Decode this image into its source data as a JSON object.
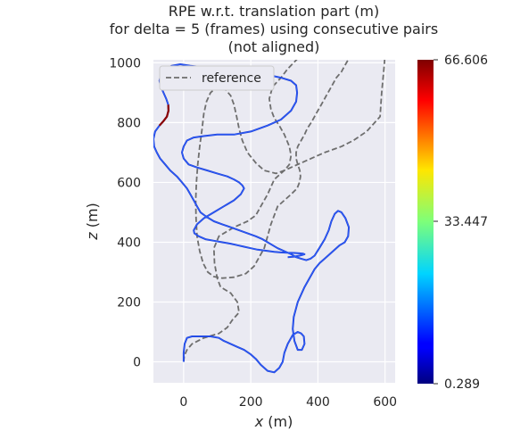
{
  "chart_data": {
    "type": "line",
    "title_lines": [
      "RPE w.r.t. translation part (m)",
      "for delta = 5 (frames) using consecutive pairs",
      "(not aligned)"
    ],
    "xlabel": {
      "var": "x",
      "unit": " (m)"
    },
    "ylabel": {
      "var": "z",
      "unit": " (m)"
    },
    "xlim": [
      -90,
      630
    ],
    "ylim": [
      -70,
      1010
    ],
    "xticks": [
      0,
      200,
      400,
      600
    ],
    "yticks": [
      0,
      200,
      400,
      600,
      800,
      1000
    ],
    "grid": true,
    "legend": {
      "position": "top-left",
      "entries": [
        {
          "label": "reference",
          "style": "dashed",
          "color": "#6e6e6e"
        }
      ]
    },
    "colorbar": {
      "colormap": "jet",
      "min": 0.289,
      "max": 66.606,
      "tick_labels": [
        "66.606",
        "33.447",
        "0.289"
      ]
    },
    "series": [
      {
        "name": "reference",
        "style": "dashed",
        "color": "#6e6e6e",
        "x": [
          0,
          2,
          10,
          25,
          60,
          105,
          130,
          145,
          165,
          160,
          140,
          110,
          100,
          92,
          90,
          105,
          150,
          190,
          215,
          230,
          250,
          270,
          300,
          340,
          380,
          420,
          470,
          505,
          545,
          585,
          590,
          595,
          598,
          600,
          590,
          560,
          520,
          490,
          470,
          440,
          405,
          375,
          360,
          345,
          310,
          290,
          265,
          255,
          260,
          270,
          285,
          300,
          315,
          320,
          315,
          300,
          275,
          240,
          215,
          190,
          175,
          165,
          158,
          150,
          140,
          125,
          110,
          95,
          80,
          68,
          60,
          55,
          48,
          42,
          38,
          36,
          37,
          40,
          48,
          58,
          72,
          90,
          115,
          150,
          185,
          210,
          225,
          240,
          250,
          260,
          270,
          280,
          300,
          320,
          338,
          345,
          348,
          346,
          340,
          335,
          335,
          340,
          350,
          360,
          368,
          380,
          395,
          410,
          425,
          440,
          455,
          470,
          480,
          490,
          495,
          485,
          470,
          450,
          420,
          400,
          380,
          360,
          345,
          335
        ],
        "y": [
          0,
          20,
          40,
          60,
          80,
          95,
          115,
          140,
          165,
          200,
          230,
          250,
          280,
          330,
          380,
          420,
          450,
          470,
          490,
          520,
          560,
          610,
          640,
          660,
          680,
          700,
          720,
          740,
          770,
          820,
          900,
          960,
          1000,
          1030,
          1060,
          1080,
          1090,
          1100,
          1110,
          1110,
          1100,
          1085,
          1060,
          1020,
          980,
          950,
          920,
          880,
          845,
          815,
          790,
          760,
          720,
          690,
          660,
          640,
          630,
          640,
          665,
          700,
          740,
          780,
          820,
          860,
          890,
          910,
          920,
          915,
          900,
          870,
          830,
          780,
          720,
          660,
          600,
          540,
          480,
          420,
          370,
          330,
          300,
          285,
          280,
          283,
          295,
          320,
          350,
          380,
          420,
          460,
          490,
          520,
          540,
          560,
          580,
          600,
          620,
          640,
          660,
          680,
          700,
          720,
          740,
          760,
          780,
          800,
          830,
          860,
          890,
          920,
          950,
          970,
          990,
          1010,
          1030,
          1050,
          1070,
          1085,
          1095,
          1098,
          1095,
          1080,
          1060,
          1030
        ]
      },
      {
        "name": "",
        "style": "solid",
        "colormap_values": "jet",
        "x": [
          0,
          0,
          3,
          10,
          25,
          50,
          80,
          105,
          120,
          140,
          160,
          180,
          200,
          215,
          230,
          250,
          270,
          285,
          295,
          300,
          310,
          325,
          340,
          350,
          358,
          360,
          352,
          340,
          330,
          325,
          328,
          340,
          360,
          375,
          390,
          405,
          420,
          435,
          450,
          465,
          480,
          490,
          492,
          482,
          470,
          460,
          450,
          440,
          432,
          420,
          404,
          390,
          378,
          365,
          350,
          335,
          320,
          300,
          280,
          265,
          250,
          235,
          215,
          190,
          165,
          140,
          115,
          90,
          68,
          50,
          40,
          30,
          20,
          10,
          -5,
          -20,
          -40,
          -55,
          -70,
          -80,
          -88,
          -90,
          -85,
          -72,
          -60,
          -50,
          -45,
          -46,
          -52,
          -60,
          -68,
          -72,
          -68,
          -55,
          -35,
          -10,
          20,
          60,
          100,
          150,
          200,
          250,
          290,
          320,
          335,
          338,
          335,
          320,
          290,
          250,
          200,
          150,
          100,
          60,
          30,
          10,
          0,
          -5,
          0,
          15,
          40,
          70,
          100,
          130,
          150,
          165,
          175,
          180,
          170,
          150,
          120,
          90,
          60,
          40,
          30,
          32,
          45,
          65,
          90,
          115,
          140,
          160,
          180,
          200,
          220,
          240,
          255,
          270,
          290,
          310,
          330,
          345,
          355,
          360,
          355,
          345,
          330,
          310
        ],
        "y": [
          0,
          30,
          60,
          80,
          85,
          85,
          85,
          80,
          70,
          60,
          50,
          40,
          25,
          10,
          -10,
          -30,
          -35,
          -20,
          0,
          30,
          60,
          90,
          100,
          95,
          85,
          60,
          40,
          40,
          70,
          110,
          150,
          200,
          250,
          280,
          310,
          330,
          345,
          360,
          375,
          390,
          400,
          420,
          450,
          480,
          500,
          505,
          495,
          470,
          440,
          410,
          380,
          355,
          345,
          340,
          345,
          350,
          360,
          370,
          380,
          390,
          400,
          410,
          420,
          430,
          440,
          450,
          460,
          470,
          485,
          500,
          520,
          540,
          560,
          580,
          600,
          620,
          640,
          660,
          680,
          700,
          720,
          745,
          770,
          790,
          805,
          820,
          840,
          860,
          880,
          900,
          920,
          940,
          960,
          980,
          990,
          995,
          990,
          985,
          980,
          975,
          970,
          960,
          950,
          940,
          925,
          900,
          870,
          840,
          810,
          790,
          770,
          760,
          760,
          755,
          750,
          740,
          720,
          700,
          680,
          660,
          650,
          640,
          630,
          620,
          610,
          600,
          590,
          580,
          560,
          540,
          520,
          500,
          480,
          460,
          440,
          430,
          420,
          410,
          405,
          400,
          395,
          390,
          385,
          380,
          375,
          372,
          370,
          368,
          366,
          365,
          364,
          363,
          362,
          360,
          358,
          355,
          352,
          350
        ]
      }
    ]
  }
}
